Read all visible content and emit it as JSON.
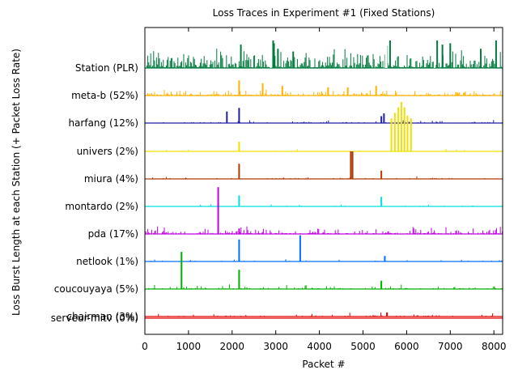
{
  "chart_data": {
    "type": "line",
    "title": "Loss Traces in Experiment #1 (Fixed Stations)",
    "xlabel": "Packet #",
    "ylabel": "Loss Burst Length at each Station (+ Packet Loss Rate)",
    "xlim": [
      0,
      8200
    ],
    "xticks": [
      "0",
      "1000",
      "2000",
      "3000",
      "4000",
      "5000",
      "6000",
      "7000",
      "8000"
    ],
    "grid": false,
    "legend": "none",
    "series": [
      {
        "name": "Station (PLR)",
        "color": "#007a3d",
        "spikes": [
          [
            2200,
            0.85
          ],
          [
            2940,
            1.0
          ],
          [
            2960,
            0.9
          ],
          [
            3050,
            0.7
          ],
          [
            3400,
            0.6
          ],
          [
            5550,
            0.8
          ],
          [
            5620,
            1.0
          ],
          [
            6700,
            1.0
          ],
          [
            6820,
            0.85
          ],
          [
            7000,
            0.9
          ],
          [
            7700,
            0.7
          ],
          [
            8050,
            1.0
          ]
        ]
      },
      {
        "name": "meta-b (52%)",
        "color": "#ffb000",
        "spikes": [
          [
            2160,
            0.55
          ],
          [
            2700,
            0.45
          ],
          [
            3150,
            0.35
          ],
          [
            4200,
            0.3
          ],
          [
            4650,
            0.3
          ],
          [
            5300,
            0.35
          ]
        ]
      },
      {
        "name": "harfang (12%)",
        "color": "#1f1fa3",
        "spikes": [
          [
            1880,
            0.42
          ],
          [
            2160,
            0.55
          ],
          [
            5480,
            0.35
          ],
          [
            5420,
            0.25
          ]
        ]
      },
      {
        "name": "univers (2%)",
        "color": "#f0e000",
        "spikes": [
          [
            2160,
            0.35
          ],
          [
            5650,
            1.2
          ],
          [
            5730,
            1.4
          ],
          [
            5810,
            1.6
          ],
          [
            5880,
            1.8
          ],
          [
            5950,
            1.6
          ],
          [
            6020,
            1.3
          ],
          [
            6100,
            1.2
          ]
        ]
      },
      {
        "name": "miura (4%)",
        "color": "#b03a00",
        "spikes": [
          [
            2160,
            0.55
          ],
          [
            4720,
            1.0
          ],
          [
            4760,
            1.0
          ],
          [
            5420,
            0.3
          ]
        ]
      },
      {
        "name": "montardo (2%)",
        "color": "#00e0e0",
        "spikes": [
          [
            2160,
            0.4
          ],
          [
            5420,
            0.35
          ]
        ]
      },
      {
        "name": "pda (17%)",
        "color": "#c000e0",
        "spikes": [
          [
            1680,
            1.7
          ],
          [
            2160,
            0.2
          ]
        ]
      },
      {
        "name": "netlook (1%)",
        "color": "#0070ff",
        "spikes": [
          [
            2160,
            0.8
          ],
          [
            3560,
            0.95
          ],
          [
            5500,
            0.2
          ]
        ]
      },
      {
        "name": "coucouyaya (5%)",
        "color": "#00b000",
        "spikes": [
          [
            840,
            1.35
          ],
          [
            2160,
            0.7
          ],
          [
            5420,
            0.3
          ]
        ]
      },
      {
        "name": "chairman (3%)",
        "color": "#e00000",
        "spikes": [
          [
            5550,
            0.15
          ]
        ]
      },
      {
        "name": "serveur-mitv (0%)",
        "color": "#e00000",
        "spikes": []
      }
    ]
  }
}
